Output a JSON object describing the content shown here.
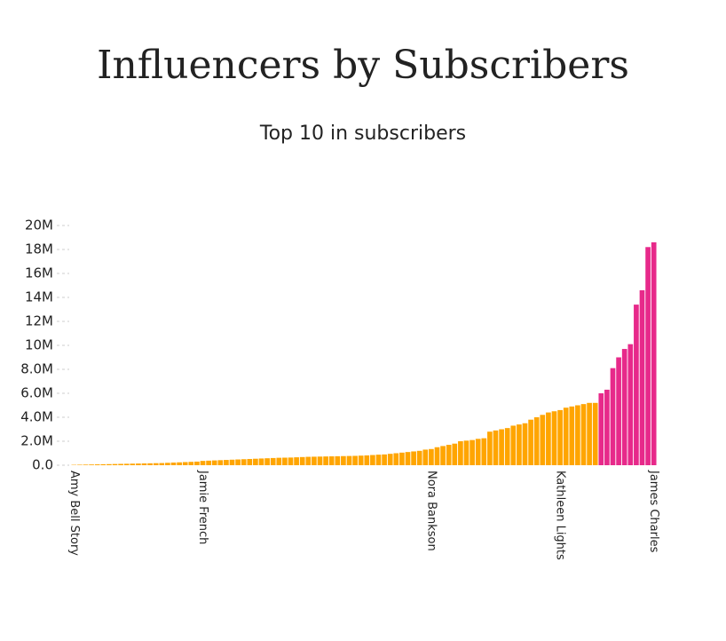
{
  "chart_data": {
    "type": "bar",
    "title": "Influencers by Subscribers",
    "subtitle": "Top 10 in subscribers",
    "categories": [
      "Amy Bell Story",
      null,
      null,
      null,
      null,
      null,
      null,
      null,
      null,
      null,
      null,
      null,
      null,
      null,
      null,
      null,
      null,
      null,
      null,
      null,
      null,
      null,
      "Jamie French",
      null,
      null,
      null,
      null,
      null,
      null,
      null,
      null,
      null,
      null,
      null,
      null,
      null,
      null,
      null,
      null,
      null,
      null,
      null,
      null,
      null,
      null,
      null,
      null,
      null,
      null,
      null,
      null,
      null,
      null,
      null,
      null,
      null,
      null,
      null,
      null,
      null,
      null,
      "Nora Bankson",
      null,
      null,
      null,
      null,
      null,
      null,
      null,
      null,
      null,
      null,
      null,
      null,
      null,
      null,
      null,
      null,
      null,
      null,
      null,
      null,
      null,
      "Kathleen Lights",
      null,
      null,
      null,
      null,
      null,
      null,
      null,
      null,
      null,
      null,
      null,
      null,
      null,
      null,
      null,
      "James Charles"
    ],
    "values": [
      0.03,
      0.04,
      0.05,
      0.06,
      0.07,
      0.08,
      0.09,
      0.1,
      0.11,
      0.12,
      0.13,
      0.14,
      0.15,
      0.16,
      0.17,
      0.18,
      0.2,
      0.22,
      0.24,
      0.26,
      0.28,
      0.3,
      0.36,
      0.38,
      0.4,
      0.42,
      0.44,
      0.46,
      0.48,
      0.5,
      0.52,
      0.54,
      0.56,
      0.58,
      0.6,
      0.62,
      0.63,
      0.64,
      0.66,
      0.68,
      0.7,
      0.71,
      0.72,
      0.73,
      0.74,
      0.75,
      0.76,
      0.77,
      0.78,
      0.8,
      0.82,
      0.85,
      0.88,
      0.9,
      0.95,
      1.0,
      1.05,
      1.1,
      1.15,
      1.2,
      1.3,
      1.35,
      1.5,
      1.6,
      1.7,
      1.8,
      2.0,
      2.05,
      2.1,
      2.2,
      2.25,
      2.8,
      2.9,
      3.0,
      3.1,
      3.3,
      3.4,
      3.5,
      3.8,
      4.0,
      4.2,
      4.4,
      4.5,
      4.6,
      4.8,
      4.9,
      5.0,
      5.1,
      5.2,
      5.2,
      6.0,
      6.3,
      8.1,
      9.0,
      9.7,
      10.1,
      13.4,
      14.6,
      18.2,
      18.6
    ],
    "color": "#ffa500",
    "highlight_color": "#e7298a",
    "highlight_count": 10,
    "ylim": [
      0,
      20
    ],
    "yticks": [
      {
        "value": 0,
        "label": "0.0"
      },
      {
        "value": 2,
        "label": "2.0M"
      },
      {
        "value": 4,
        "label": "4.0M"
      },
      {
        "value": 6,
        "label": "6.0M"
      },
      {
        "value": 8,
        "label": "8.0M"
      },
      {
        "value": 10,
        "label": "10M"
      },
      {
        "value": 12,
        "label": "12M"
      },
      {
        "value": 14,
        "label": "14M"
      },
      {
        "value": 16,
        "label": "16M"
      },
      {
        "value": 18,
        "label": "18M"
      },
      {
        "value": 20,
        "label": "20M"
      }
    ],
    "grid": false
  }
}
